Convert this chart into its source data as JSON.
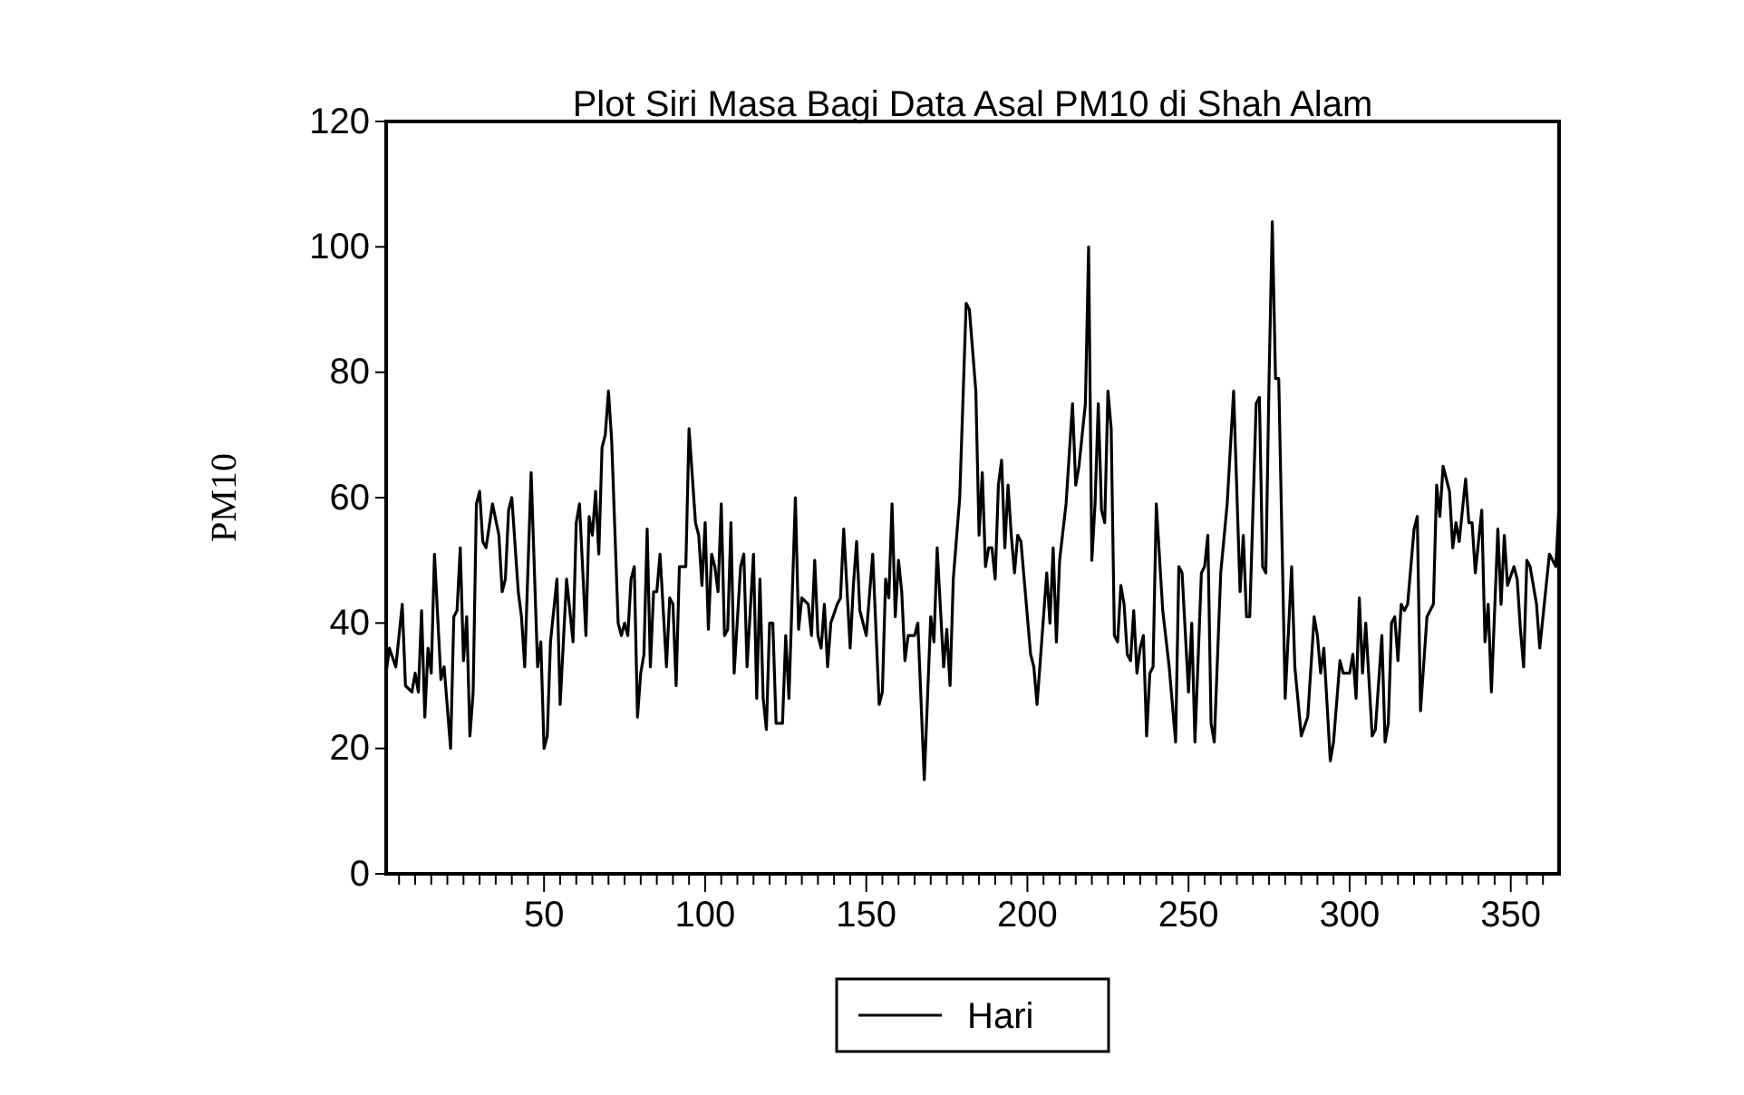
{
  "chart_data": {
    "type": "line",
    "title": "Plot Siri Masa Bagi Data Asal PM10 di Shah Alam",
    "ylabel": "PM10",
    "xlim": [
      1,
      365
    ],
    "xticks": [
      {
        "value": 5,
        "label": null
      },
      {
        "value": 10,
        "label": null
      },
      {
        "value": 15,
        "label": null
      },
      {
        "value": 20,
        "label": null
      },
      {
        "value": 25,
        "label": null
      },
      {
        "value": 30,
        "label": null
      },
      {
        "value": 35,
        "label": null
      },
      {
        "value": 40,
        "label": null
      },
      {
        "value": 45,
        "label": null
      },
      50,
      {
        "value": 55,
        "label": null
      },
      {
        "value": 60,
        "label": null
      },
      {
        "value": 65,
        "label": null
      },
      {
        "value": 70,
        "label": null
      },
      {
        "value": 75,
        "label": null
      },
      {
        "value": 80,
        "label": null
      },
      {
        "value": 85,
        "label": null
      },
      {
        "value": 90,
        "label": null
      },
      {
        "value": 95,
        "label": null
      },
      100,
      {
        "value": 105,
        "label": null
      },
      {
        "value": 110,
        "label": null
      },
      {
        "value": 115,
        "label": null
      },
      {
        "value": 120,
        "label": null
      },
      {
        "value": 125,
        "label": null
      },
      {
        "value": 130,
        "label": null
      },
      {
        "value": 135,
        "label": null
      },
      {
        "value": 140,
        "label": null
      },
      {
        "value": 145,
        "label": null
      },
      150,
      {
        "value": 155,
        "label": null
      },
      {
        "value": 160,
        "label": null
      },
      {
        "value": 165,
        "label": null
      },
      {
        "value": 170,
        "label": null
      },
      {
        "value": 175,
        "label": null
      },
      {
        "value": 180,
        "label": null
      },
      {
        "value": 185,
        "label": null
      },
      {
        "value": 190,
        "label": null
      },
      {
        "value": 195,
        "label": null
      },
      200,
      {
        "value": 205,
        "label": null
      },
      {
        "value": 210,
        "label": null
      },
      {
        "value": 215,
        "label": null
      },
      {
        "value": 220,
        "label": null
      },
      {
        "value": 225,
        "label": null
      },
      {
        "value": 230,
        "label": null
      },
      {
        "value": 235,
        "label": null
      },
      {
        "value": 240,
        "label": null
      },
      {
        "value": 245,
        "label": null
      },
      250,
      {
        "value": 255,
        "label": null
      },
      {
        "value": 260,
        "label": null
      },
      {
        "value": 265,
        "label": null
      },
      {
        "value": 270,
        "label": null
      },
      {
        "value": 275,
        "label": null
      },
      {
        "value": 280,
        "label": null
      },
      {
        "value": 285,
        "label": null
      },
      {
        "value": 290,
        "label": null
      },
      {
        "value": 295,
        "label": null
      },
      300,
      {
        "value": 305,
        "label": null
      },
      {
        "value": 310,
        "label": null
      },
      {
        "value": 315,
        "label": null
      },
      {
        "value": 320,
        "label": null
      },
      {
        "value": 325,
        "label": null
      },
      {
        "value": 330,
        "label": null
      },
      {
        "value": 335,
        "label": null
      },
      {
        "value": 340,
        "label": null
      },
      {
        "value": 345,
        "label": null
      },
      350,
      {
        "value": 355,
        "label": null
      },
      {
        "value": 360,
        "label": null
      }
    ],
    "ylim": [
      0,
      120
    ],
    "yticks": [
      0,
      20,
      40,
      60,
      80,
      100,
      120
    ],
    "legend": "bottom",
    "grid": false,
    "series": [
      {
        "name": "Hari",
        "color": "#000000",
        "x": [
          1,
          2,
          4,
          6,
          7,
          9,
          10,
          11,
          12,
          13,
          14,
          15,
          16,
          18,
          19,
          21,
          22,
          23,
          24,
          25,
          26,
          27,
          28,
          29,
          30,
          31,
          32,
          34,
          36,
          37,
          38,
          39,
          40,
          42,
          43,
          44,
          46,
          48,
          49,
          50,
          51,
          52,
          54,
          55,
          57,
          59,
          60,
          61,
          63,
          64,
          65,
          66,
          67,
          68,
          69,
          70,
          71,
          73,
          74,
          75,
          76,
          77,
          78,
          79,
          80,
          81,
          82,
          83,
          84,
          85,
          86,
          88,
          89,
          90,
          91,
          92,
          94,
          95,
          97,
          98,
          99,
          100,
          101,
          102,
          103,
          104,
          105,
          106,
          107,
          108,
          109,
          111,
          112,
          113,
          115,
          116,
          117,
          118,
          119,
          120,
          121,
          122,
          124,
          125,
          126,
          128,
          129,
          130,
          132,
          133,
          134,
          135,
          136,
          137,
          138,
          139,
          141,
          142,
          143,
          145,
          146,
          147,
          148,
          150,
          152,
          154,
          155,
          156,
          157,
          158,
          159,
          160,
          161,
          162,
          163,
          165,
          166,
          168,
          170,
          171,
          172,
          174,
          175,
          176,
          177,
          179,
          181,
          182,
          184,
          185,
          186,
          187,
          188,
          189,
          190,
          191,
          192,
          193,
          194,
          195,
          196,
          197,
          198,
          201,
          202,
          203,
          206,
          207,
          208,
          209,
          210,
          212,
          214,
          215,
          216,
          218,
          219,
          220,
          221,
          222,
          223,
          224,
          225,
          226,
          227,
          228,
          229,
          230,
          231,
          232,
          233,
          234,
          235,
          236,
          237,
          238,
          239,
          240,
          242,
          244,
          246,
          247,
          248,
          250,
          251,
          252,
          254,
          255,
          256,
          257,
          258,
          260,
          262,
          264,
          266,
          267,
          268,
          269,
          271,
          272,
          273,
          274,
          275,
          276,
          277,
          278,
          280,
          282,
          283,
          285,
          287,
          289,
          290,
          291,
          292,
          294,
          295,
          297,
          298,
          300,
          301,
          302,
          303,
          304,
          305,
          307,
          308,
          310,
          311,
          312,
          313,
          314,
          315,
          316,
          317,
          318,
          320,
          321,
          322,
          324,
          326,
          327,
          328,
          329,
          330,
          331,
          332,
          333,
          334,
          336,
          337,
          338,
          339,
          341,
          342,
          343,
          344,
          346,
          347,
          348,
          349,
          351,
          352,
          353,
          354,
          355,
          356,
          358,
          359,
          362,
          364,
          365
        ],
        "values": [
          32,
          36,
          33,
          43,
          30,
          29,
          32,
          29,
          42,
          25,
          36,
          32,
          51,
          31,
          33,
          20,
          41,
          42,
          52,
          34,
          41,
          22,
          29,
          59,
          61,
          53,
          52,
          59,
          54,
          45,
          47,
          58,
          60,
          45,
          41,
          33,
          64,
          33,
          37,
          20,
          22,
          37,
          47,
          27,
          47,
          37,
          56,
          59,
          38,
          57,
          54,
          61,
          51,
          68,
          70,
          77,
          69,
          40,
          38,
          40,
          38,
          47,
          49,
          25,
          32,
          35,
          55,
          33,
          45,
          45,
          51,
          33,
          44,
          43,
          30,
          49,
          49,
          71,
          56,
          54,
          46,
          56,
          39,
          51,
          49,
          45,
          59,
          38,
          39,
          56,
          32,
          49,
          51,
          33,
          51,
          28,
          47,
          28,
          23,
          40,
          40,
          24,
          24,
          38,
          28,
          60,
          39,
          44,
          43,
          38,
          50,
          38,
          36,
          43,
          33,
          40,
          43,
          44,
          55,
          36,
          46,
          53,
          42,
          38,
          51,
          27,
          29,
          47,
          44,
          59,
          41,
          50,
          45,
          34,
          38,
          38,
          40,
          15,
          41,
          37,
          52,
          33,
          39,
          30,
          47,
          60,
          91,
          90,
          77,
          54,
          64,
          49,
          52,
          52,
          47,
          62,
          66,
          52,
          62,
          54,
          48,
          54,
          53,
          35,
          33,
          27,
          48,
          40,
          52,
          37,
          50,
          59,
          75,
          62,
          65,
          75,
          100,
          50,
          59,
          75,
          58,
          56,
          77,
          71,
          38,
          37,
          46,
          43,
          35,
          34,
          42,
          32,
          36,
          38,
          22,
          32,
          33,
          59,
          42,
          33,
          21,
          49,
          48,
          29,
          40,
          21,
          48,
          49,
          54,
          24,
          21,
          48,
          59,
          77,
          45,
          54,
          41,
          41,
          75,
          76,
          49,
          48,
          79,
          104,
          79,
          79,
          28,
          49,
          33,
          22,
          25,
          41,
          38,
          32,
          36,
          18,
          21,
          34,
          32,
          32,
          35,
          28,
          44,
          32,
          40,
          22,
          23,
          38,
          21,
          24,
          40,
          41,
          34,
          43,
          42,
          43,
          55,
          57,
          26,
          41,
          43,
          62,
          57,
          65,
          63,
          61,
          52,
          56,
          53,
          63,
          56,
          56,
          48,
          58,
          37,
          43,
          29,
          55,
          43,
          54,
          46,
          49,
          47,
          39,
          33,
          50,
          49,
          43,
          36,
          51,
          49,
          59
        ]
      }
    ]
  }
}
